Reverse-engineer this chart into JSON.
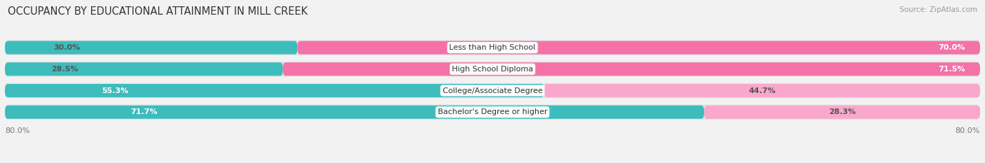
{
  "title": "OCCUPANCY BY EDUCATIONAL ATTAINMENT IN MILL CREEK",
  "source": "Source: ZipAtlas.com",
  "categories": [
    "Less than High School",
    "High School Diploma",
    "College/Associate Degree",
    "Bachelor's Degree or higher"
  ],
  "owner_values": [
    30.0,
    28.5,
    55.3,
    71.7
  ],
  "renter_values": [
    70.0,
    71.5,
    44.7,
    28.3
  ],
  "owner_color": "#3DBCBC",
  "renter_color": "#F472A8",
  "renter_color_light": "#F9A8CC",
  "total_width": 100.0,
  "bar_height": 0.62,
  "background_color": "#f2f2f2",
  "bar_bg_color": "#e2e2e2",
  "row_bg_color": "#e8e8e8",
  "title_fontsize": 10.5,
  "label_fontsize": 8.0,
  "value_fontsize": 8.0,
  "source_fontsize": 7.5
}
